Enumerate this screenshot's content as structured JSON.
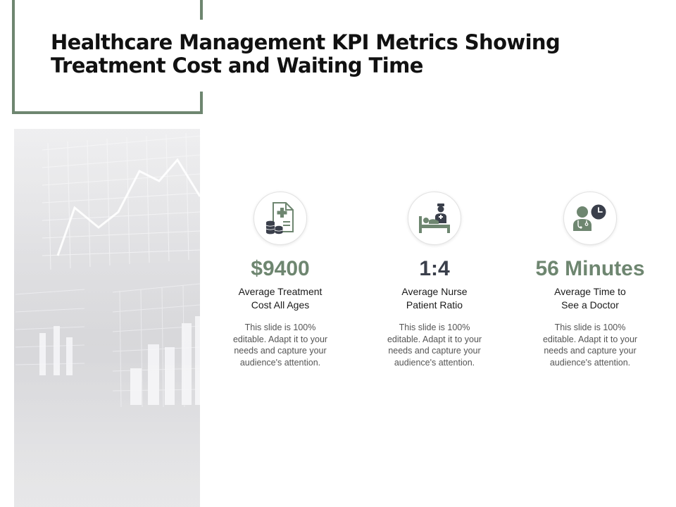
{
  "title": {
    "line1": "Healthcare Management KPI Metrics Showing",
    "line2": "Treatment Cost and Waiting Time"
  },
  "colors": {
    "accent": "#6e8670",
    "dark": "#3a3f4b"
  },
  "kpis": [
    {
      "icon": "medical-cost-document-icon",
      "value": "$9400",
      "label_line1": "Average Treatment",
      "label_line2": "Cost All Ages",
      "description": "This slide is 100% editable. Adapt it to your needs and capture your audience's attention."
    },
    {
      "icon": "nurse-patient-bed-icon",
      "value": "1:4",
      "label_line1": "Average Nurse",
      "label_line2": "Patient Ratio",
      "description": "This slide is 100% editable. Adapt it to your needs and capture your audience's attention."
    },
    {
      "icon": "doctor-clock-icon",
      "value": "56 Minutes",
      "label_line1": "Average Time to",
      "label_line2": "See a Doctor",
      "description": "This slide is 100% editable. Adapt it to your needs and capture your audience's attention."
    }
  ]
}
